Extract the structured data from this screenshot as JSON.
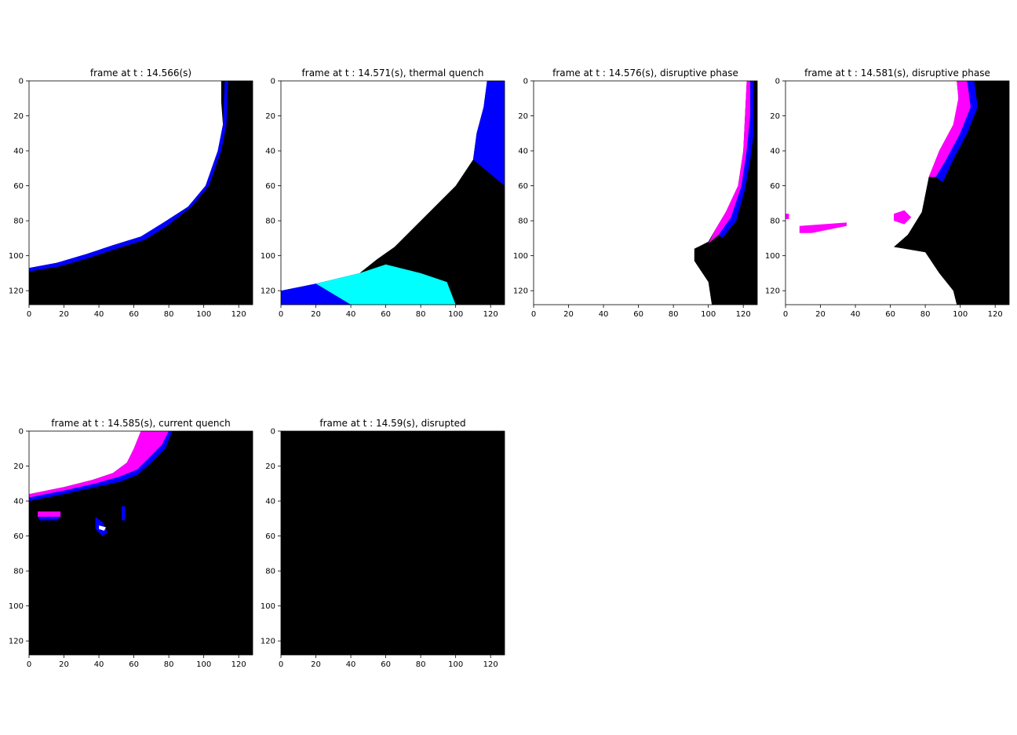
{
  "chart_data": [
    {
      "type": "heatmap",
      "title": "frame at t : 14.566(s)",
      "xticks": [
        "0",
        "20",
        "40",
        "60",
        "80",
        "100",
        "120"
      ],
      "yticks": [
        "0",
        "20",
        "40",
        "60",
        "80",
        "100",
        "120"
      ],
      "xlim": [
        0,
        128
      ],
      "ylim": [
        128,
        0
      ],
      "background": "#000000",
      "regions": [
        {
          "color": "#ff00ff",
          "points": [
            [
              0,
              0
            ],
            [
              108,
              0
            ],
            [
              111,
              10
            ],
            [
              113,
              25
            ],
            [
              110,
              40
            ],
            [
              103,
              60
            ],
            [
              93,
              72
            ],
            [
              78,
              82
            ],
            [
              65,
              90
            ],
            [
              50,
              95
            ],
            [
              35,
              100
            ],
            [
              18,
              104
            ],
            [
              0,
              108
            ],
            [
              0,
              128
            ],
            [
              128,
              128
            ],
            [
              128,
              0
            ]
          ],
          "invert_fill": true
        },
        {
          "color": "#ffffff",
          "points": [
            [
              0,
              0
            ],
            [
              110,
              0
            ],
            [
              110,
              12
            ],
            [
              111,
              25
            ],
            [
              108,
              40
            ],
            [
              101,
              60
            ],
            [
              91,
              72
            ],
            [
              77,
              81
            ],
            [
              64,
              89
            ],
            [
              48,
              94
            ],
            [
              33,
              99
            ],
            [
              16,
              104
            ],
            [
              0,
              107
            ]
          ]
        },
        {
          "color": "#0000ff",
          "points": [
            [
              0,
              107
            ],
            [
              16,
              104
            ],
            [
              33,
              99
            ],
            [
              48,
              94
            ],
            [
              64,
              89
            ],
            [
              77,
              81
            ],
            [
              91,
              72
            ],
            [
              101,
              60
            ],
            [
              108,
              40
            ],
            [
              111,
              25
            ],
            [
              112,
              0
            ],
            [
              114,
              0
            ],
            [
              113,
              25
            ],
            [
              110,
              40
            ],
            [
              103,
              60
            ],
            [
              93,
              72
            ],
            [
              79,
              83
            ],
            [
              66,
              91
            ],
            [
              50,
              96
            ],
            [
              35,
              101
            ],
            [
              18,
              106
            ],
            [
              0,
              109
            ]
          ]
        }
      ]
    },
    {
      "type": "heatmap",
      "title": "frame at t : 14.571(s), thermal quench",
      "xticks": [
        "0",
        "20",
        "40",
        "60",
        "80",
        "100",
        "120"
      ],
      "yticks": [
        "0",
        "20",
        "40",
        "60",
        "80",
        "100",
        "120"
      ],
      "xlim": [
        0,
        128
      ],
      "ylim": [
        128,
        0
      ],
      "background": "#000000",
      "regions": [
        {
          "color": "#ffffff",
          "points": [
            [
              0,
              0
            ],
            [
              118,
              0
            ],
            [
              116,
              15
            ],
            [
              112,
              30
            ],
            [
              110,
              45
            ],
            [
              100,
              60
            ],
            [
              85,
              75
            ],
            [
              75,
              85
            ],
            [
              65,
              95
            ],
            [
              55,
              102
            ],
            [
              45,
              110
            ],
            [
              20,
              116
            ],
            [
              0,
              120
            ]
          ]
        },
        {
          "color": "#0000ff",
          "points": [
            [
              118,
              0
            ],
            [
              128,
              0
            ],
            [
              128,
              60
            ],
            [
              110,
              45
            ],
            [
              112,
              30
            ],
            [
              116,
              15
            ]
          ]
        },
        {
          "color": "#00ffff",
          "points": [
            [
              20,
              116
            ],
            [
              45,
              110
            ],
            [
              60,
              105
            ],
            [
              80,
              110
            ],
            [
              95,
              115
            ],
            [
              100,
              128
            ],
            [
              40,
              128
            ]
          ]
        },
        {
          "color": "#0000ff",
          "points": [
            [
              0,
              120
            ],
            [
              20,
              116
            ],
            [
              40,
              128
            ],
            [
              0,
              128
            ]
          ]
        }
      ]
    },
    {
      "type": "heatmap",
      "title": "frame at t : 14.576(s), disruptive phase",
      "xticks": [
        "0",
        "20",
        "40",
        "60",
        "80",
        "100",
        "120"
      ],
      "yticks": [
        "0",
        "20",
        "40",
        "60",
        "80",
        "100",
        "120"
      ],
      "xlim": [
        0,
        128
      ],
      "ylim": [
        128,
        0
      ],
      "background": "#000000",
      "regions": [
        {
          "color": "#ffffff",
          "points": [
            [
              0,
              0
            ],
            [
              122,
              0
            ],
            [
              121,
              20
            ],
            [
              120,
              40
            ],
            [
              117,
              60
            ],
            [
              110,
              75
            ],
            [
              104,
              85
            ],
            [
              100,
              92
            ],
            [
              92,
              96
            ],
            [
              92,
              103
            ],
            [
              100,
              115
            ],
            [
              102,
              128
            ],
            [
              0,
              128
            ]
          ]
        },
        {
          "color": "#ff00ff",
          "points": [
            [
              122,
              0
            ],
            [
              124,
              0
            ],
            [
              124,
              20
            ],
            [
              122,
              40
            ],
            [
              119,
              60
            ],
            [
              113,
              78
            ],
            [
              106,
              88
            ],
            [
              100,
              93
            ],
            [
              104,
              85
            ],
            [
              110,
              75
            ],
            [
              117,
              60
            ],
            [
              120,
              40
            ],
            [
              121,
              20
            ]
          ]
        },
        {
          "color": "#0000ff",
          "points": [
            [
              124,
              0
            ],
            [
              126,
              0
            ],
            [
              126,
              30
            ],
            [
              124,
              45
            ],
            [
              121,
              62
            ],
            [
              116,
              80
            ],
            [
              108,
              90
            ],
            [
              106,
              88
            ],
            [
              113,
              78
            ],
            [
              119,
              60
            ],
            [
              122,
              40
            ],
            [
              124,
              20
            ]
          ]
        }
      ]
    },
    {
      "type": "heatmap",
      "title": "frame at t : 14.581(s), disruptive phase",
      "xticks": [
        "0",
        "20",
        "40",
        "60",
        "80",
        "100",
        "120"
      ],
      "yticks": [
        "0",
        "20",
        "40",
        "60",
        "80",
        "100",
        "120"
      ],
      "xlim": [
        0,
        128
      ],
      "ylim": [
        128,
        0
      ],
      "background": "#000000",
      "regions": [
        {
          "color": "#ffffff",
          "points": [
            [
              0,
              0
            ],
            [
              98,
              0
            ],
            [
              99,
              10
            ],
            [
              96,
              25
            ],
            [
              88,
              40
            ],
            [
              82,
              55
            ],
            [
              78,
              75
            ],
            [
              70,
              88
            ],
            [
              62,
              95
            ],
            [
              80,
              98
            ],
            [
              88,
              110
            ],
            [
              96,
              120
            ],
            [
              98,
              128
            ],
            [
              0,
              128
            ]
          ]
        },
        {
          "color": "#ff00ff",
          "points": [
            [
              98,
              0
            ],
            [
              104,
              0
            ],
            [
              106,
              15
            ],
            [
              100,
              30
            ],
            [
              92,
              45
            ],
            [
              86,
              55
            ],
            [
              82,
              55
            ],
            [
              88,
              40
            ],
            [
              96,
              25
            ],
            [
              99,
              10
            ]
          ]
        },
        {
          "color": "#0000ff",
          "points": [
            [
              104,
              0
            ],
            [
              108,
              0
            ],
            [
              110,
              15
            ],
            [
              104,
              30
            ],
            [
              96,
              45
            ],
            [
              90,
              58
            ],
            [
              86,
              55
            ],
            [
              92,
              45
            ],
            [
              100,
              30
            ],
            [
              106,
              15
            ]
          ]
        },
        {
          "color": "#ff00ff",
          "points": [
            [
              8,
              83
            ],
            [
              35,
              81
            ],
            [
              35,
              83
            ],
            [
              15,
              87
            ],
            [
              8,
              87
            ]
          ]
        },
        {
          "color": "#ff00ff",
          "points": [
            [
              0,
              76
            ],
            [
              2,
              76
            ],
            [
              2,
              79
            ],
            [
              0,
              79
            ]
          ]
        },
        {
          "color": "#ff00ff",
          "points": [
            [
              62,
              76
            ],
            [
              68,
              74
            ],
            [
              72,
              78
            ],
            [
              68,
              82
            ],
            [
              62,
              80
            ]
          ]
        }
      ]
    },
    {
      "type": "heatmap",
      "title": "frame at t : 14.585(s), current quench",
      "xticks": [
        "0",
        "20",
        "40",
        "60",
        "80",
        "100",
        "120"
      ],
      "yticks": [
        "0",
        "20",
        "40",
        "60",
        "80",
        "100",
        "120"
      ],
      "xlim": [
        0,
        128
      ],
      "ylim": [
        128,
        0
      ],
      "background": "#000000",
      "regions": [
        {
          "color": "#ffffff",
          "points": [
            [
              0,
              0
            ],
            [
              64,
              0
            ],
            [
              60,
              10
            ],
            [
              56,
              18
            ],
            [
              48,
              24
            ],
            [
              36,
              28
            ],
            [
              20,
              32
            ],
            [
              0,
              36
            ]
          ]
        },
        {
          "color": "#ff00ff",
          "points": [
            [
              64,
              0
            ],
            [
              80,
              0
            ],
            [
              76,
              8
            ],
            [
              68,
              16
            ],
            [
              62,
              22
            ],
            [
              52,
              26
            ],
            [
              38,
              30
            ],
            [
              20,
              34
            ],
            [
              0,
              38
            ],
            [
              0,
              36
            ],
            [
              20,
              32
            ],
            [
              36,
              28
            ],
            [
              48,
              24
            ],
            [
              56,
              18
            ],
            [
              60,
              10
            ]
          ]
        },
        {
          "color": "#0000ff",
          "points": [
            [
              80,
              0
            ],
            [
              82,
              0
            ],
            [
              78,
              10
            ],
            [
              70,
              18
            ],
            [
              62,
              25
            ],
            [
              52,
              29
            ],
            [
              38,
              32
            ],
            [
              20,
              36
            ],
            [
              0,
              40
            ],
            [
              0,
              38
            ],
            [
              20,
              34
            ],
            [
              38,
              30
            ],
            [
              52,
              26
            ],
            [
              62,
              22
            ],
            [
              68,
              16
            ],
            [
              76,
              8
            ]
          ]
        },
        {
          "color": "#ff00ff",
          "points": [
            [
              5,
              46
            ],
            [
              18,
              46
            ],
            [
              18,
              49
            ],
            [
              5,
              49
            ]
          ]
        },
        {
          "color": "#0000ff",
          "points": [
            [
              5,
              49
            ],
            [
              18,
              49
            ],
            [
              16,
              51
            ],
            [
              6,
              51
            ]
          ]
        },
        {
          "color": "#0000ff",
          "points": [
            [
              38,
              49
            ],
            [
              42,
              52
            ],
            [
              45,
              58
            ],
            [
              42,
              60
            ],
            [
              38,
              56
            ]
          ]
        },
        {
          "color": "#ffffff",
          "points": [
            [
              40,
              54
            ],
            [
              44,
              55
            ],
            [
              43,
              57
            ],
            [
              40,
              56
            ]
          ]
        },
        {
          "color": "#0000ff",
          "points": [
            [
              53,
              43
            ],
            [
              55,
              43
            ],
            [
              55,
              51
            ],
            [
              53,
              51
            ]
          ]
        }
      ]
    },
    {
      "type": "heatmap",
      "title": "frame at t : 14.59(s), disrupted",
      "xticks": [
        "0",
        "20",
        "40",
        "60",
        "80",
        "100",
        "120"
      ],
      "yticks": [
        "0",
        "20",
        "40",
        "60",
        "80",
        "100",
        "120"
      ],
      "xlim": [
        0,
        128
      ],
      "ylim": [
        128,
        0
      ],
      "background": "#000000",
      "regions": []
    }
  ]
}
